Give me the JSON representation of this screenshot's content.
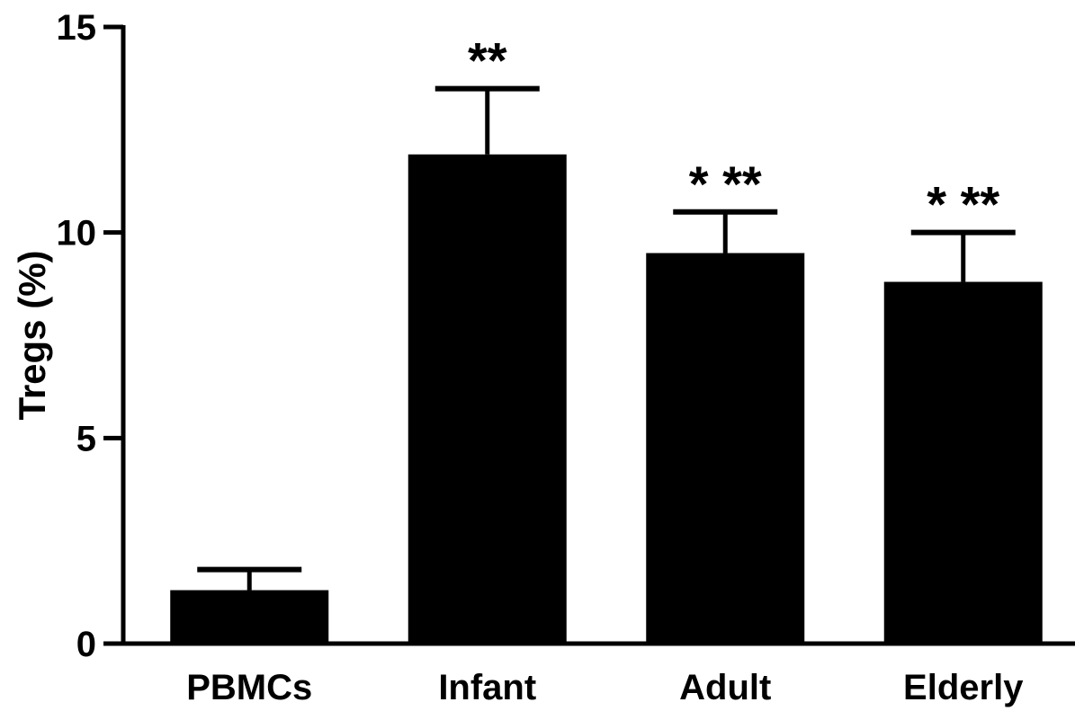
{
  "chart_data": {
    "type": "bar",
    "categories": [
      "PBMCs",
      "Infant",
      "Adult",
      "Elderly"
    ],
    "values": [
      1.3,
      11.9,
      9.5,
      8.8
    ],
    "errors": [
      0.5,
      1.6,
      1.0,
      1.2
    ],
    "annotations": [
      "",
      "**",
      "* **",
      "* **"
    ],
    "ylabel": "Tregs (%)",
    "ylim": [
      0,
      15
    ],
    "yticks": [
      0,
      5,
      10,
      15
    ],
    "ytick_labels": [
      "0",
      "5",
      "10",
      "15"
    ],
    "grid": false,
    "bar_color": "#000000"
  }
}
